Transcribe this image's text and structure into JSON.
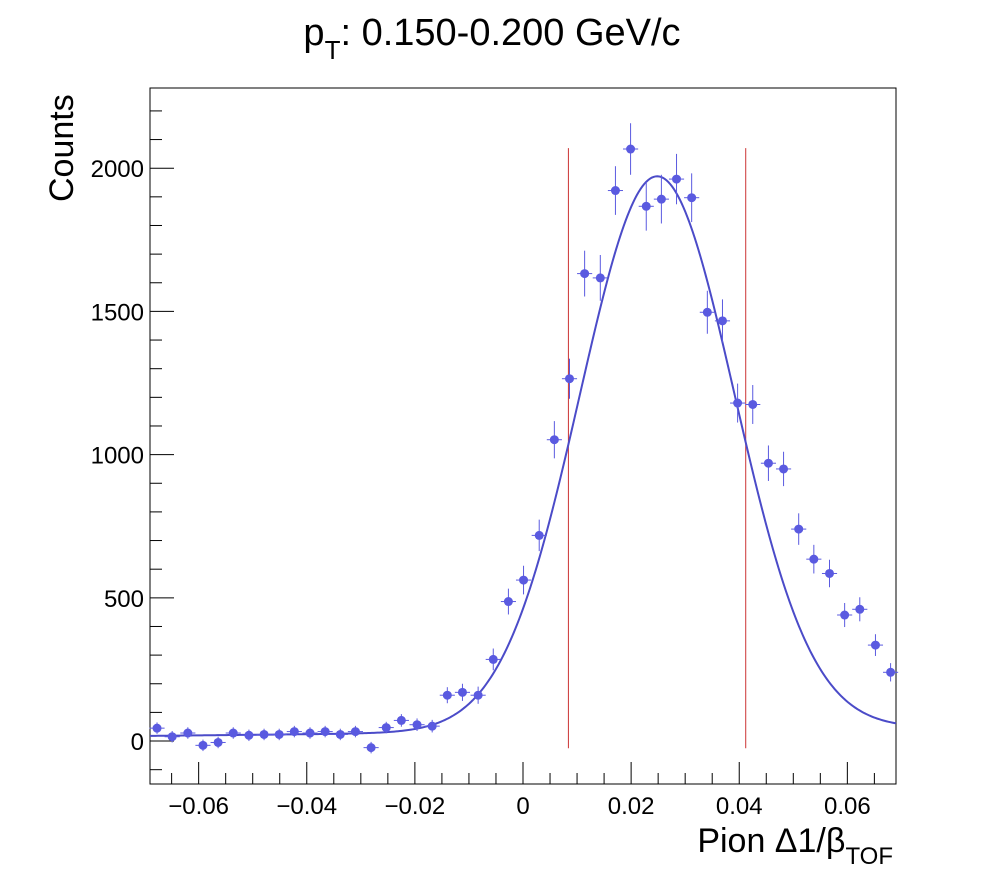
{
  "chart_data": {
    "type": "scatter",
    "title": {
      "main": "p",
      "sub": "T",
      "rest": ": 0.150-0.200 GeV/c"
    },
    "xlabel": {
      "main": "Pion Δ1/β",
      "sub": "TOF"
    },
    "ylabel": "Counts",
    "xlim": [
      -0.069,
      0.069
    ],
    "ylim": [
      -150,
      2280
    ],
    "grid": false,
    "legend": "none",
    "xticks": [
      {
        "value": -0.06,
        "label": "−0.06"
      },
      {
        "value": -0.04,
        "label": "−0.04"
      },
      {
        "value": -0.02,
        "label": "−0.02"
      },
      {
        "value": 0,
        "label": "0"
      },
      {
        "value": 0.02,
        "label": "0.02"
      },
      {
        "value": 0.04,
        "label": "0.04"
      },
      {
        "value": 0.06,
        "label": "0.06"
      }
    ],
    "yticks": [
      {
        "value": 0,
        "label": "0"
      },
      {
        "value": 500,
        "label": "500"
      },
      {
        "value": 1000,
        "label": "1000"
      },
      {
        "value": 1500,
        "label": "1500"
      },
      {
        "value": 2000,
        "label": "2000"
      }
    ],
    "x_bin_halfwidth": 0.0014,
    "points": [
      {
        "x": -0.0677,
        "y": 45,
        "err": 20
      },
      {
        "x": -0.0649,
        "y": 15,
        "err": 20
      },
      {
        "x": -0.062,
        "y": 28,
        "err": 20
      },
      {
        "x": -0.0592,
        "y": -15,
        "err": 20
      },
      {
        "x": -0.0564,
        "y": -5,
        "err": 20
      },
      {
        "x": -0.0536,
        "y": 28,
        "err": 20
      },
      {
        "x": -0.0507,
        "y": 20,
        "err": 20
      },
      {
        "x": -0.0479,
        "y": 23,
        "err": 20
      },
      {
        "x": -0.0451,
        "y": 23,
        "err": 20
      },
      {
        "x": -0.0423,
        "y": 33,
        "err": 20
      },
      {
        "x": -0.0394,
        "y": 28,
        "err": 20
      },
      {
        "x": -0.0366,
        "y": 33,
        "err": 20
      },
      {
        "x": -0.0338,
        "y": 23,
        "err": 20
      },
      {
        "x": -0.031,
        "y": 33,
        "err": 20
      },
      {
        "x": -0.0281,
        "y": -23,
        "err": 20
      },
      {
        "x": -0.0253,
        "y": 47,
        "err": 20
      },
      {
        "x": -0.0225,
        "y": 72,
        "err": 22
      },
      {
        "x": -0.0196,
        "y": 57,
        "err": 22
      },
      {
        "x": -0.0168,
        "y": 52,
        "err": 22
      },
      {
        "x": -0.014,
        "y": 160,
        "err": 28
      },
      {
        "x": -0.0112,
        "y": 170,
        "err": 30
      },
      {
        "x": -0.0083,
        "y": 160,
        "err": 30
      },
      {
        "x": -0.0055,
        "y": 285,
        "err": 38
      },
      {
        "x": -0.0027,
        "y": 487,
        "err": 45
      },
      {
        "x": 0.0001,
        "y": 562,
        "err": 50
      },
      {
        "x": 0.003,
        "y": 718,
        "err": 55
      },
      {
        "x": 0.0058,
        "y": 1052,
        "err": 65
      },
      {
        "x": 0.0086,
        "y": 1265,
        "err": 70
      },
      {
        "x": 0.0114,
        "y": 1632,
        "err": 80
      },
      {
        "x": 0.0143,
        "y": 1617,
        "err": 80
      },
      {
        "x": 0.0171,
        "y": 1922,
        "err": 85
      },
      {
        "x": 0.0199,
        "y": 2067,
        "err": 90
      },
      {
        "x": 0.0228,
        "y": 1867,
        "err": 85
      },
      {
        "x": 0.0256,
        "y": 1892,
        "err": 85
      },
      {
        "x": 0.0284,
        "y": 1962,
        "err": 88
      },
      {
        "x": 0.0312,
        "y": 1897,
        "err": 85
      },
      {
        "x": 0.0341,
        "y": 1497,
        "err": 75
      },
      {
        "x": 0.0369,
        "y": 1467,
        "err": 75
      },
      {
        "x": 0.0397,
        "y": 1180,
        "err": 68
      },
      {
        "x": 0.0425,
        "y": 1175,
        "err": 68
      },
      {
        "x": 0.0454,
        "y": 970,
        "err": 62
      },
      {
        "x": 0.0482,
        "y": 950,
        "err": 60
      },
      {
        "x": 0.051,
        "y": 740,
        "err": 55
      },
      {
        "x": 0.0538,
        "y": 635,
        "err": 50
      },
      {
        "x": 0.0567,
        "y": 585,
        "err": 48
      },
      {
        "x": 0.0595,
        "y": 440,
        "err": 42
      },
      {
        "x": 0.0623,
        "y": 460,
        "err": 42
      },
      {
        "x": 0.0652,
        "y": 335,
        "err": 38
      },
      {
        "x": 0.068,
        "y": 240,
        "err": 32
      }
    ],
    "fit": {
      "type": "gaussian_plus_baseline",
      "mean": 0.0248,
      "sigma": 0.0143,
      "amplitude": 1935,
      "baseline_intercept": 18,
      "baseline_slope": 200
    },
    "cut_lines": [
      0.0084,
      0.0412
    ],
    "cut_line_y_range": [
      -25,
      2070
    ]
  },
  "colors": {
    "markers": "#5a5ae0",
    "fit_line": "#4b4bc8",
    "cut_lines": "#cc3333",
    "axes": "#000000"
  }
}
